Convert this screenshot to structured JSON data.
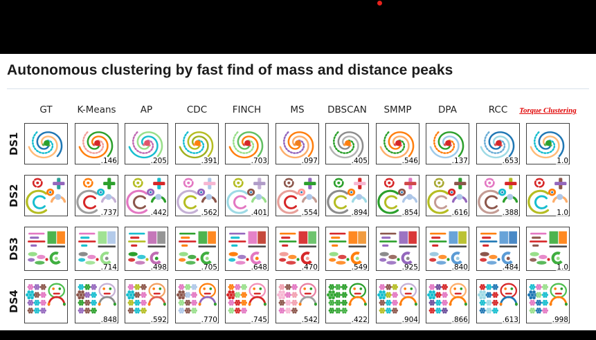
{
  "letterbox": {
    "color": "#000000",
    "recording_dot_color": "#e8221c"
  },
  "title": "Autonomous clustering by fast find of mass and distance peaks",
  "figure": {
    "highlight_column": "Torque Clustering",
    "highlight_color": "#e00000",
    "columns": [
      "GT",
      "K-Means",
      "AP",
      "CDC",
      "FINCH",
      "MS",
      "DBSCAN",
      "SMMP",
      "DPA",
      "RCC",
      "Torque Clustering"
    ],
    "rows": [
      {
        "label": "DS1",
        "motif": "spiral",
        "scores": [
          "",
          ".146",
          ".205",
          ".391",
          ".703",
          ".097",
          ".405",
          ".546",
          ".137",
          ".653",
          "1.0"
        ],
        "palettes": [
          [
            "#1f77b4",
            "#ffbb78",
            "#17becf",
            "#2ca02c"
          ],
          [
            "#2ca02c",
            "#ff7f0e",
            "#f2a09a",
            "#d62728"
          ],
          [
            "#98df8a",
            "#17becf",
            "#c06bb3",
            "#e0556b"
          ],
          [
            "#b5bd22",
            "#a0b020",
            "#17becf",
            "#ff7f0e"
          ],
          [
            "#62bf62",
            "#ff7f0e",
            "#98df8a",
            "#d62728"
          ],
          [
            "#ff7f0e",
            "#fdae6b",
            "#9467bd",
            "#f07f1e"
          ],
          [
            "#8c8c8c",
            "#b3b3b3",
            "#2ca02c",
            "#ff7f0e"
          ],
          [
            "#ff7f0e",
            "#fdae6b",
            "#2ca02c",
            "#d62728"
          ],
          [
            "#2ca02c",
            "#9ecae9",
            "#ff7f0e",
            "#d62728"
          ],
          [
            "#1f77b4",
            "#9edae5",
            "#6baed6",
            "#d62728"
          ],
          [
            "#1f77b4",
            "#ffbb78",
            "#17becf",
            "#2ca02c"
          ]
        ]
      },
      {
        "label": "DS2",
        "motif": "shapes",
        "scores": [
          "",
          ".737",
          ".442",
          ".562",
          ".401",
          ".554",
          ".894",
          ".854",
          ".616",
          ".388",
          "1.0"
        ],
        "palettes": [
          [
            "#b5bd22",
            "#17becf",
            "#d62728",
            "#2aa198",
            "#9467bd",
            "#ff7f0e",
            "#fdae6b"
          ],
          [
            "#9e9e9e",
            "#d62728",
            "#ff7f0e",
            "#2ca02c",
            "#2ca02c",
            "#17becf",
            "#c5b0d5"
          ],
          [
            "#e377c2",
            "#8c564b",
            "#b5bd22",
            "#17becf",
            "#d62728",
            "#9467bd",
            "#2ca02c"
          ],
          [
            "#c5b0d5",
            "#b5bd22",
            "#e377c2",
            "#aec7e8",
            "#f7b6d2",
            "#9467bd",
            "#8c564b"
          ],
          [
            "#9edae5",
            "#e377c2",
            "#b5bd22",
            "#c5b0d5",
            "#b09cc8",
            "#8c564b",
            "#98df8a"
          ],
          [
            "#e8a09a",
            "#d62728",
            "#8c564b",
            "#9467bd",
            "#2ca02c",
            "#ff9896",
            "#c49c94"
          ],
          [
            "#8c8c8c",
            "#b5bd22",
            "#2ca02c",
            "#d62728",
            "#f7b6d2",
            "#ff7f0e",
            "#9edae5"
          ],
          [
            "#2ca02c",
            "#b5bd22",
            "#d62728",
            "#e377c2",
            "#d04848",
            "#8c564b",
            "#aec7e8"
          ],
          [
            "#b5bd22",
            "#c49c94",
            "#a8a832",
            "#2ca02c",
            "#8c564b",
            "#d62728",
            "#9467bd"
          ],
          [
            "#c49c94",
            "#8c564b",
            "#e377c2",
            "#b5bd22",
            "#d62728",
            "#17becf",
            "#2ca02c"
          ],
          [
            "#b5bd22",
            "#17becf",
            "#d62728",
            "#8c564b",
            "#9467bd",
            "#ff7f0e",
            "#fdae6b"
          ]
        ]
      },
      {
        "label": "DS3",
        "motif": "blocks",
        "scores": [
          "",
          ".714",
          ".498",
          ".705",
          ".648",
          ".470",
          ".549",
          ".925",
          ".840",
          ".484",
          "1.0"
        ],
        "palettes": [
          [
            "#e377c2",
            "#9467bd",
            "#d62728",
            "#3fae3f",
            "#ff7f0e",
            "#98df8a"
          ],
          [
            "#e377c2",
            "#17becf",
            "#d62728",
            "#98df8a",
            "#aec7e8",
            "#8c8c8c"
          ],
          [
            "#17becf",
            "#d62728",
            "#b5bd22",
            "#c06bb3",
            "#8c8c8c",
            "#2ca02c"
          ],
          [
            "#2ca02c",
            "#ff7f0e",
            "#d62728",
            "#3fae3f",
            "#ff7f0e",
            "#98df8a"
          ],
          [
            "#9467bd",
            "#17becf",
            "#d62728",
            "#e377c2",
            "#c0392b",
            "#ff7f0e"
          ],
          [
            "#ff7f0e",
            "#d62728",
            "#2ca02c",
            "#d62728",
            "#62bf62",
            "#f2a09a"
          ],
          [
            "#d62728",
            "#ff7f0e",
            "#2ca02c",
            "#ff7f0e",
            "#f0922e",
            "#98df8a"
          ],
          [
            "#8c564b",
            "#9467bd",
            "#2ca02c",
            "#9467bd",
            "#d62728",
            "#8c8c8c"
          ],
          [
            "#ff7f0e",
            "#d62728",
            "#2ca02c",
            "#5b9bd5",
            "#b5bd22",
            "#9ecae1"
          ],
          [
            "#ff7f0e",
            "#d62728",
            "#1f77b4",
            "#5b9bd5",
            "#3a7fc1",
            "#8c564b"
          ],
          [
            "#e377c2",
            "#8c564b",
            "#d62728",
            "#3fae3f",
            "#ff7f0e",
            "#98df8a"
          ]
        ]
      },
      {
        "label": "DS4",
        "motif": "smiley",
        "scores": [
          "",
          ".848",
          ".592",
          ".770",
          ".745",
          ".542",
          ".422",
          ".904",
          ".866",
          ".613",
          ".998"
        ],
        "palettes": [
          [
            "#e377c2",
            "#9467bd",
            "#8c564b",
            "#17becf",
            "#4fbf4f",
            "#d62728"
          ],
          [
            "#17becf",
            "#2ca02c",
            "#9467bd",
            "#8c564b",
            "#c5b0d5",
            "#8c8c8c"
          ],
          [
            "#e377c2",
            "#b5bd22",
            "#8c564b",
            "#17becf",
            "#f2a061",
            "#e06050"
          ],
          [
            "#e377c2",
            "#98df8a",
            "#aec7e8",
            "#8c564b",
            "#ff7f0e",
            "#9467bd"
          ],
          [
            "#ff7f0e",
            "#e377c2",
            "#98df8a",
            "#d62728",
            "#f290b8",
            "#d62728"
          ],
          [
            "#f2a0b0",
            "#8c564b",
            "#e377c2",
            "#f7b6d2",
            "#e87ea1",
            "#a0a0a0"
          ],
          [
            "#2ca02c",
            "#3fae3f",
            "#2ca02c",
            "#35a835",
            "#2ca02c",
            "#ff7f0e"
          ],
          [
            "#e377c2",
            "#8c564b",
            "#b5bd22",
            "#17becf",
            "#c5b0d5",
            "#ff7f0e"
          ],
          [
            "#e377c2",
            "#6b4c9a",
            "#d62728",
            "#17becf",
            "#fdae6b",
            "#ff7f0e"
          ],
          [
            "#d62728",
            "#17becf",
            "#1f77b4",
            "#9edae5",
            "#d62728",
            "#1f77b4"
          ],
          [
            "#17becf",
            "#e377c2",
            "#98df8a",
            "#1f77b4",
            "#4fbf4f",
            "#ff7f0e"
          ]
        ]
      }
    ]
  }
}
